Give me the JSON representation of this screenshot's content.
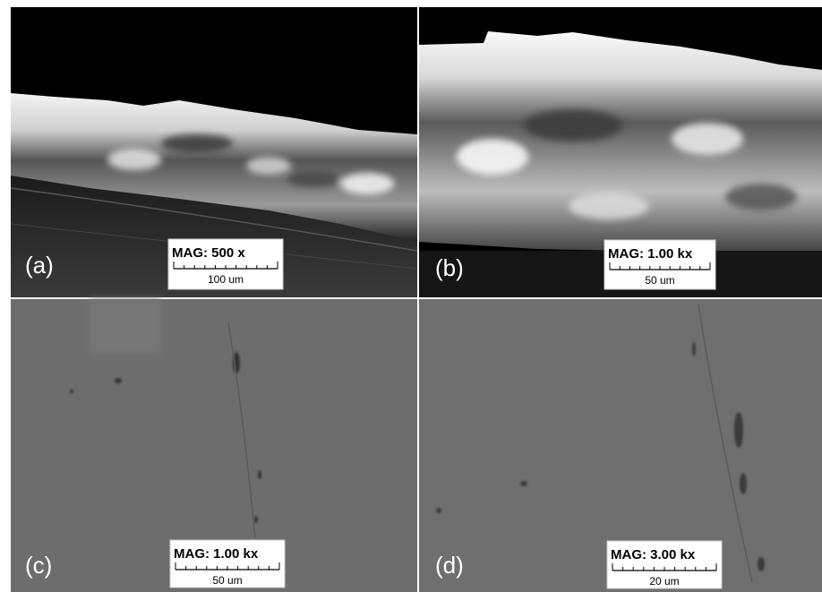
{
  "panels": [
    {
      "label": "(a)",
      "magnification": "MAG: 500 x",
      "scale_bar": "100 um"
    },
    {
      "label": "(b)",
      "magnification": "MAG: 1.00 kx",
      "scale_bar": "50 um"
    },
    {
      "label": "(c)",
      "magnification": "MAG: 1.00 kx",
      "scale_bar": "50 um"
    },
    {
      "label": "(d)",
      "magnification": "MAG: 3.00 kx",
      "scale_bar": "20 um"
    }
  ]
}
